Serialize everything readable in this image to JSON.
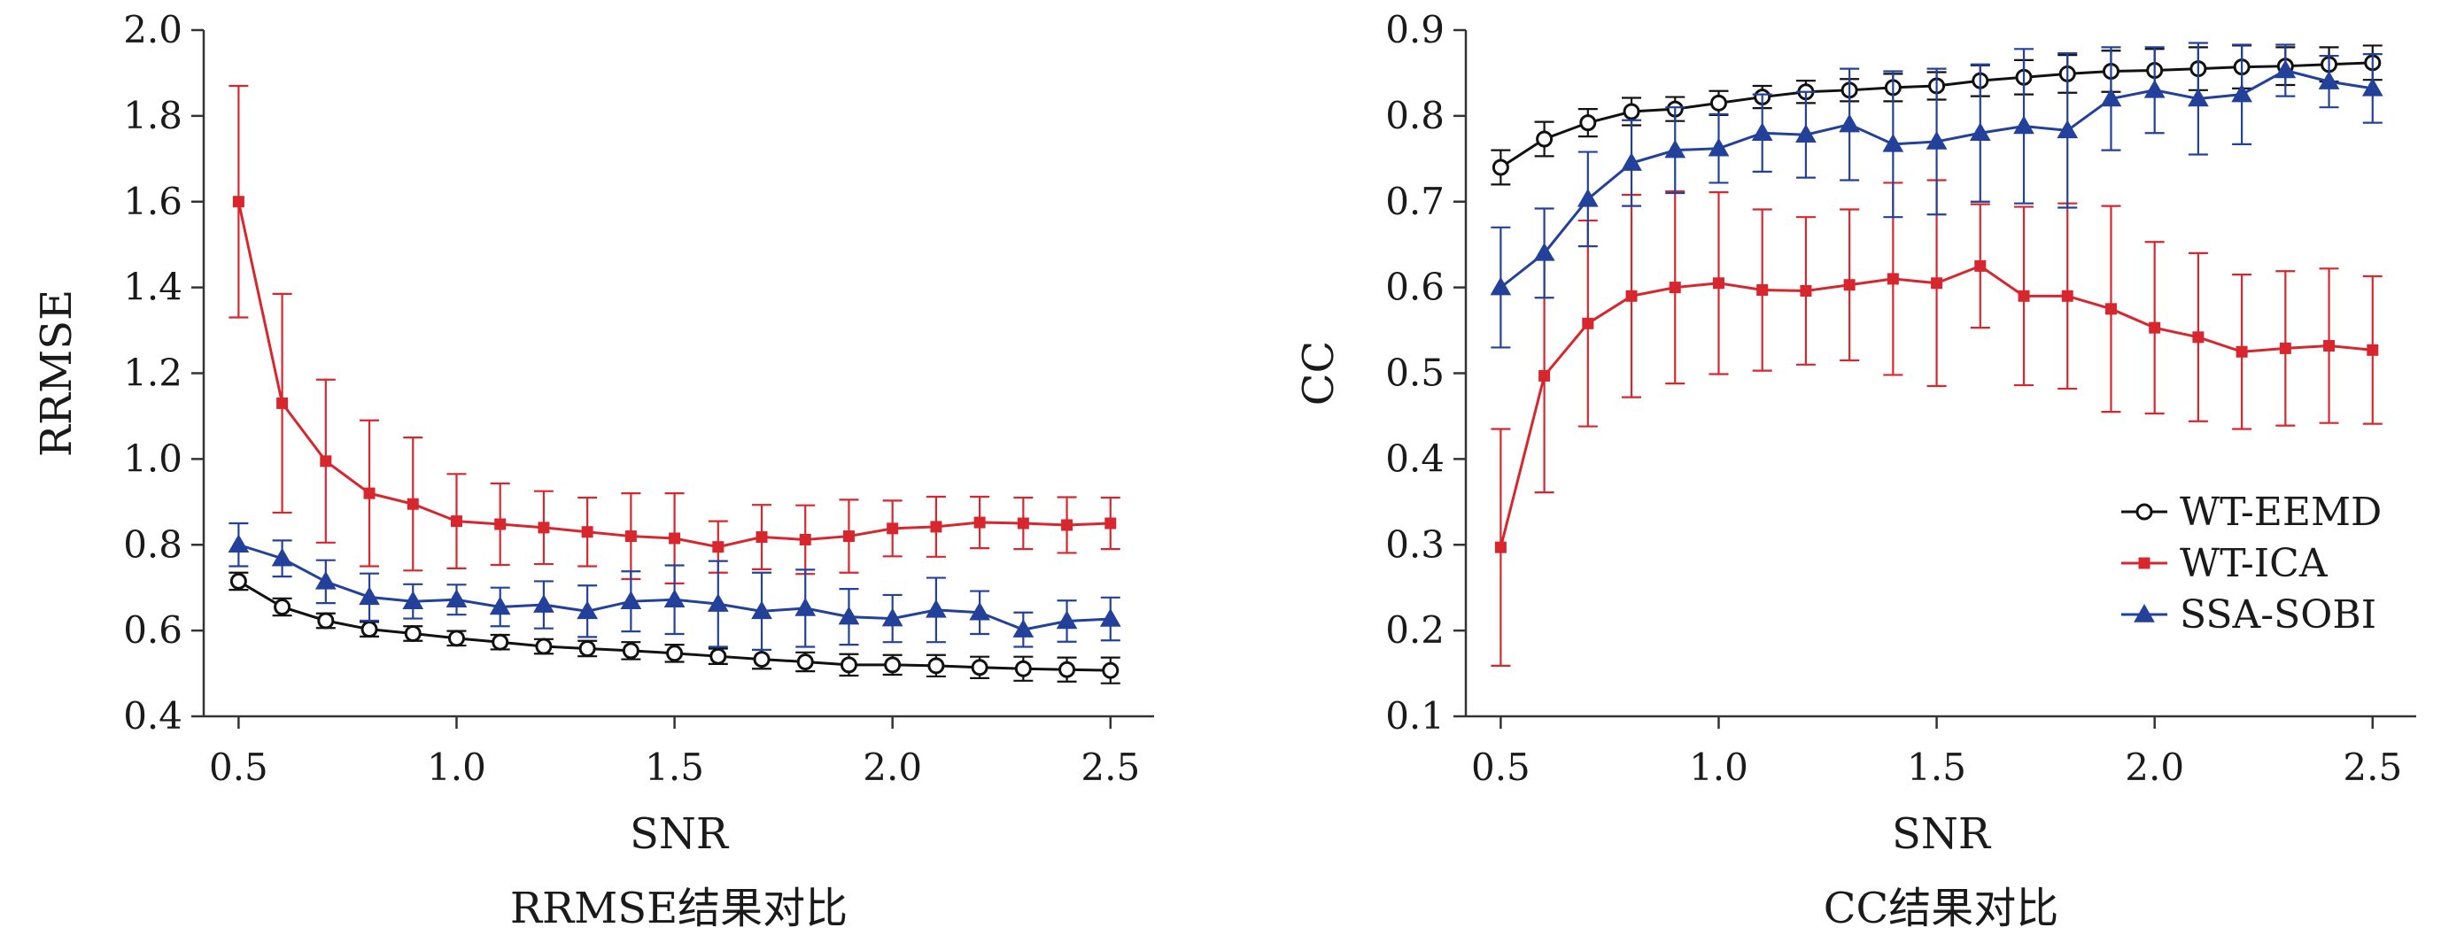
{
  "colors": {
    "WT-EEMD": "#111111",
    "WT-ICA": "#d7262e",
    "SSA-SOBI": "#23409a",
    "axis": "#333333"
  },
  "chart_data": [
    {
      "type": "line",
      "caption": "RRMSE结果对比",
      "xlabel": "SNR",
      "ylabel": "RRMSE",
      "xlim": [
        0.42,
        2.6
      ],
      "ylim": [
        0.4,
        2.0
      ],
      "xticks": [
        0.5,
        1.0,
        1.5,
        2.0,
        2.5
      ],
      "xtick_labels": [
        "0.5",
        "1.0",
        "1.5",
        "2.0",
        "2.5"
      ],
      "yticks": [
        0.4,
        0.6,
        0.8,
        1.0,
        1.2,
        1.4,
        1.6,
        1.8,
        2.0
      ],
      "ytick_labels": [
        "0.4",
        "0.6",
        "0.8",
        "1.0",
        "1.2",
        "1.4",
        "1.6",
        "1.8",
        "2.0"
      ],
      "grid": false,
      "legend": "none",
      "x": [
        0.5,
        0.6,
        0.7,
        0.8,
        0.9,
        1.0,
        1.1,
        1.2,
        1.3,
        1.4,
        1.5,
        1.6,
        1.7,
        1.8,
        1.9,
        2.0,
        2.1,
        2.2,
        2.3,
        2.4,
        2.5
      ],
      "series": [
        {
          "name": "WT-EEMD",
          "marker": "circle",
          "values": [
            0.715,
            0.655,
            0.623,
            0.603,
            0.593,
            0.582,
            0.573,
            0.563,
            0.558,
            0.553,
            0.547,
            0.54,
            0.533,
            0.527,
            0.52,
            0.52,
            0.518,
            0.514,
            0.511,
            0.509,
            0.507
          ],
          "errors": [
            0.02,
            0.02,
            0.017,
            0.017,
            0.017,
            0.017,
            0.017,
            0.017,
            0.018,
            0.02,
            0.02,
            0.018,
            0.022,
            0.022,
            0.025,
            0.023,
            0.025,
            0.025,
            0.028,
            0.028,
            0.03
          ]
        },
        {
          "name": "WT-ICA",
          "marker": "square",
          "values": [
            1.6,
            1.13,
            0.995,
            0.92,
            0.895,
            0.855,
            0.848,
            0.84,
            0.83,
            0.82,
            0.815,
            0.795,
            0.818,
            0.812,
            0.82,
            0.838,
            0.842,
            0.852,
            0.85,
            0.846,
            0.85
          ],
          "errors": [
            0.27,
            0.255,
            0.19,
            0.17,
            0.155,
            0.11,
            0.095,
            0.085,
            0.08,
            0.1,
            0.105,
            0.06,
            0.075,
            0.08,
            0.085,
            0.065,
            0.07,
            0.06,
            0.06,
            0.065,
            0.06
          ]
        },
        {
          "name": "SSA-SOBI",
          "marker": "triangle",
          "values": [
            0.8,
            0.768,
            0.714,
            0.678,
            0.668,
            0.672,
            0.655,
            0.66,
            0.645,
            0.668,
            0.672,
            0.662,
            0.645,
            0.652,
            0.632,
            0.628,
            0.648,
            0.642,
            0.602,
            0.622,
            0.627
          ],
          "errors": [
            0.05,
            0.042,
            0.05,
            0.055,
            0.04,
            0.035,
            0.045,
            0.055,
            0.06,
            0.07,
            0.08,
            0.1,
            0.09,
            0.09,
            0.065,
            0.055,
            0.075,
            0.05,
            0.04,
            0.048,
            0.05
          ]
        }
      ]
    },
    {
      "type": "line",
      "caption": "CC结果对比",
      "xlabel": "SNR",
      "ylabel": "CC",
      "xlim": [
        0.42,
        2.6
      ],
      "ylim": [
        0.1,
        0.9
      ],
      "xticks": [
        0.5,
        1.0,
        1.5,
        2.0,
        2.5
      ],
      "xtick_labels": [
        "0.5",
        "1.0",
        "1.5",
        "2.0",
        "2.5"
      ],
      "yticks": [
        0.1,
        0.2,
        0.3,
        0.4,
        0.5,
        0.6,
        0.7,
        0.8,
        0.9
      ],
      "ytick_labels": [
        "0.1",
        "0.2",
        "0.3",
        "0.4",
        "0.5",
        "0.6",
        "0.7",
        "0.8",
        "0.9"
      ],
      "grid": false,
      "legend": "right",
      "x": [
        0.5,
        0.6,
        0.7,
        0.8,
        0.9,
        1.0,
        1.1,
        1.2,
        1.3,
        1.4,
        1.5,
        1.6,
        1.7,
        1.8,
        1.9,
        2.0,
        2.1,
        2.2,
        2.3,
        2.4,
        2.5
      ],
      "series": [
        {
          "name": "WT-EEMD",
          "marker": "circle",
          "values": [
            0.74,
            0.773,
            0.792,
            0.805,
            0.808,
            0.815,
            0.822,
            0.828,
            0.83,
            0.833,
            0.835,
            0.841,
            0.845,
            0.849,
            0.852,
            0.853,
            0.855,
            0.857,
            0.858,
            0.86,
            0.862
          ],
          "errors": [
            0.02,
            0.02,
            0.016,
            0.016,
            0.014,
            0.014,
            0.013,
            0.013,
            0.013,
            0.016,
            0.016,
            0.018,
            0.02,
            0.022,
            0.024,
            0.025,
            0.025,
            0.025,
            0.022,
            0.02,
            0.02
          ]
        },
        {
          "name": "WT-ICA",
          "marker": "square",
          "values": [
            0.297,
            0.497,
            0.558,
            0.59,
            0.6,
            0.605,
            0.597,
            0.596,
            0.603,
            0.61,
            0.605,
            0.625,
            0.59,
            0.59,
            0.575,
            0.553,
            0.542,
            0.525,
            0.529,
            0.532,
            0.527
          ],
          "errors": [
            0.138,
            0.136,
            0.12,
            0.118,
            0.112,
            0.106,
            0.094,
            0.086,
            0.088,
            0.112,
            0.12,
            0.072,
            0.104,
            0.108,
            0.12,
            0.1,
            0.098,
            0.09,
            0.09,
            0.09,
            0.086
          ]
        },
        {
          "name": "SSA-SOBI",
          "marker": "triangle",
          "values": [
            0.6,
            0.64,
            0.703,
            0.745,
            0.76,
            0.762,
            0.78,
            0.778,
            0.79,
            0.767,
            0.77,
            0.78,
            0.788,
            0.783,
            0.82,
            0.83,
            0.82,
            0.825,
            0.853,
            0.84,
            0.832
          ],
          "errors": [
            0.07,
            0.052,
            0.055,
            0.05,
            0.05,
            0.04,
            0.045,
            0.05,
            0.065,
            0.085,
            0.085,
            0.08,
            0.09,
            0.09,
            0.06,
            0.05,
            0.065,
            0.058,
            0.03,
            0.03,
            0.04
          ]
        }
      ]
    }
  ]
}
